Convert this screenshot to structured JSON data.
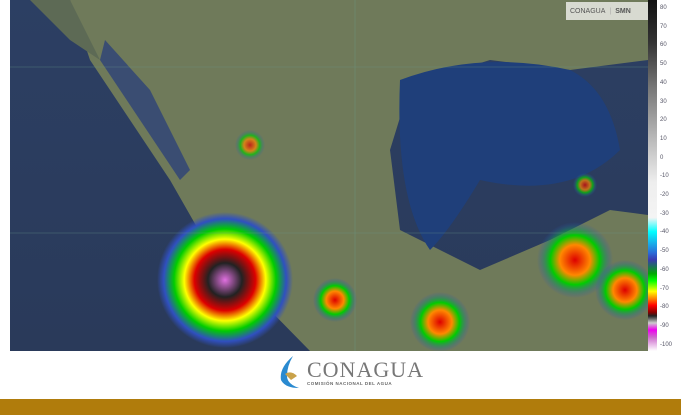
{
  "header_logos": {
    "left": "CONAGUA",
    "right": "SMN"
  },
  "colorbar": {
    "ticks": [
      "80",
      "70",
      "60",
      "50",
      "40",
      "30",
      "20",
      "10",
      "0",
      "-10",
      "-20",
      "-30",
      "-40",
      "-50",
      "-60",
      "-70",
      "-80",
      "-90",
      "-100"
    ]
  },
  "footer": {
    "logo_name": "CONAGUA",
    "logo_subtitle": "COMISIÓN NACIONAL DEL AGUA",
    "accent_color": "#b07c0c"
  }
}
